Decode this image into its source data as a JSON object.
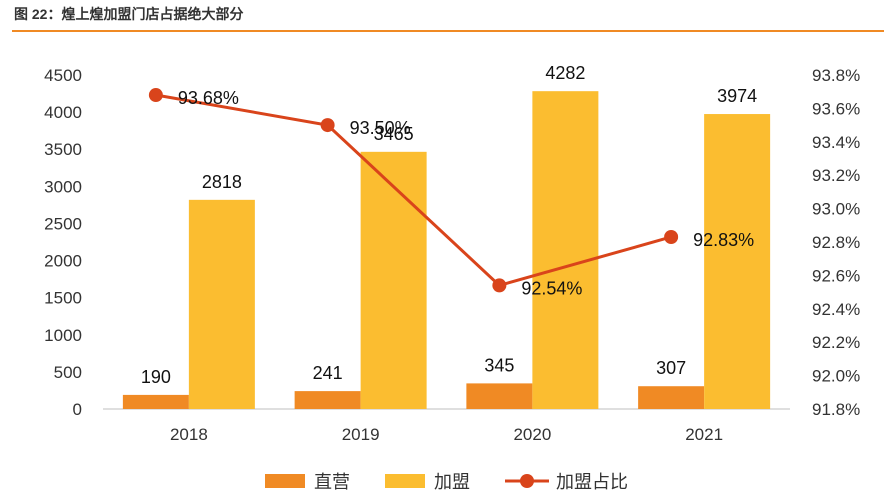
{
  "figure": {
    "title": "图 22：煌上煌加盟门店占据绝大部分"
  },
  "colors": {
    "direct": "#f08a24",
    "franchise": "#fbbd30",
    "ratio": "#d9441b",
    "rule": "#f08a24"
  },
  "chart_data": {
    "type": "bar",
    "categories": [
      "2018",
      "2019",
      "2020",
      "2021"
    ],
    "series": [
      {
        "name": "直营",
        "type": "bar",
        "axis": "left",
        "values": [
          190,
          241,
          345,
          307
        ],
        "labels": [
          "190",
          "241",
          "345",
          "307"
        ]
      },
      {
        "name": "加盟",
        "type": "bar",
        "axis": "left",
        "values": [
          2818,
          3465,
          4282,
          3974
        ],
        "labels": [
          "2818",
          "3465",
          "4282",
          "3974"
        ]
      },
      {
        "name": "加盟占比",
        "type": "line",
        "axis": "right",
        "values": [
          93.68,
          93.5,
          92.54,
          92.83
        ],
        "labels": [
          "93.68%",
          "93.50%",
          "92.54%",
          "92.83%"
        ]
      }
    ],
    "y_left": {
      "min": 0,
      "max": 4500,
      "ticks": [
        "0",
        "500",
        "1000",
        "1500",
        "2000",
        "2500",
        "3000",
        "3500",
        "4000",
        "4500"
      ]
    },
    "y_right": {
      "min": 91.8,
      "max": 93.8,
      "ticks": [
        "91.8%",
        "92.0%",
        "92.2%",
        "92.4%",
        "92.6%",
        "92.8%",
        "93.0%",
        "93.2%",
        "93.4%",
        "93.6%",
        "93.8%"
      ]
    },
    "legend": {
      "position": "bottom",
      "items": [
        "直营",
        "加盟",
        "加盟占比"
      ]
    },
    "grid": false
  }
}
